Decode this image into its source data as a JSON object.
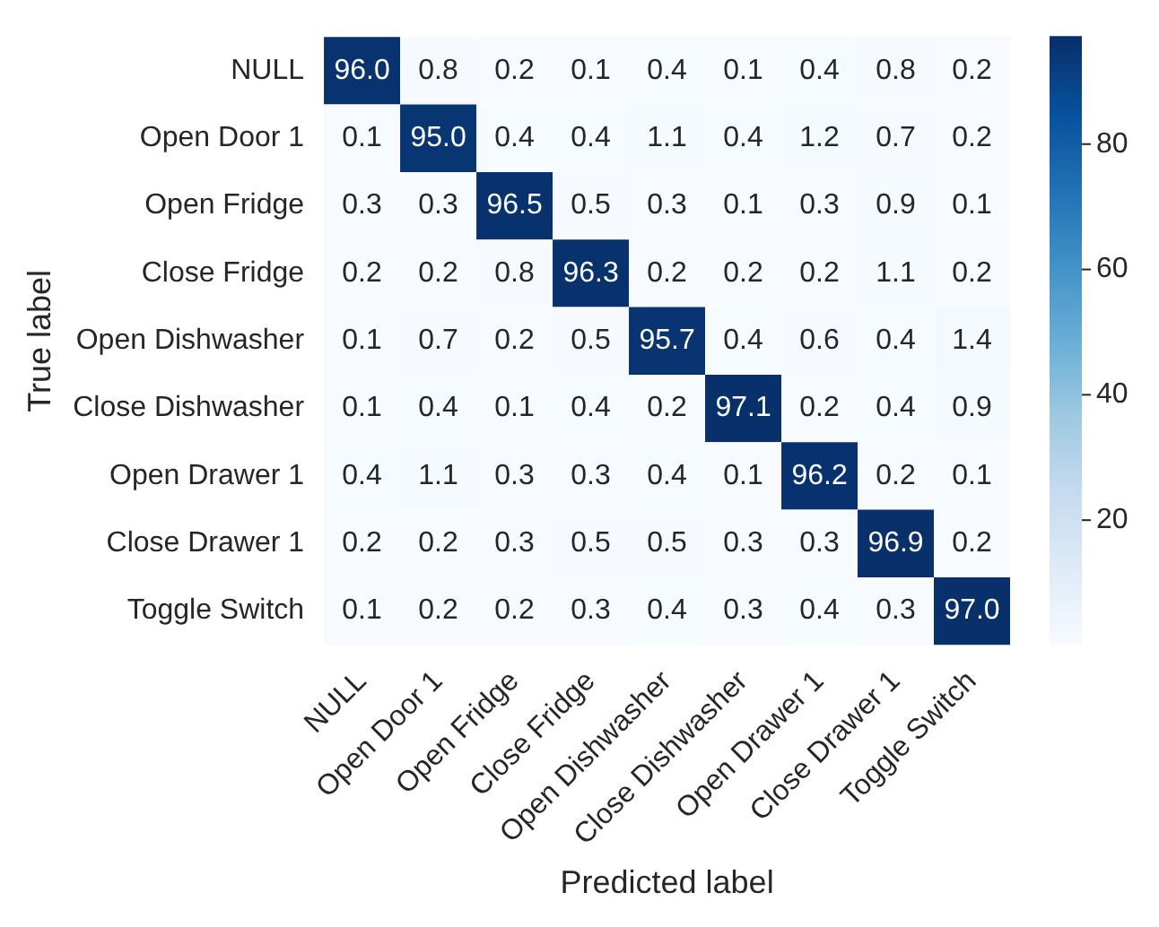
{
  "chart_data": {
    "type": "heatmap",
    "xlabel": "Predicted label",
    "ylabel": "True label",
    "categories": [
      "NULL",
      "Open Door 1",
      "Open Fridge",
      "Close Fridge",
      "Open Dishwasher",
      "Close Dishwasher",
      "Open Drawer 1",
      "Close Drawer 1",
      "Toggle Switch"
    ],
    "y_categories": [
      "NULL",
      "Open Door 1",
      "Open Fridge",
      "Close Fridge",
      "Open Dishwasher",
      "Close Dishwasher",
      "Open Drawer 1",
      "Close Drawer 1",
      "Toggle Switch"
    ],
    "cells": [
      [
        96.0,
        0.8,
        0.2,
        0.1,
        0.4,
        0.1,
        0.4,
        0.8,
        0.2
      ],
      [
        0.1,
        95.0,
        0.4,
        0.4,
        1.1,
        0.4,
        1.2,
        0.7,
        0.2
      ],
      [
        0.3,
        0.3,
        96.5,
        0.5,
        0.3,
        0.1,
        0.3,
        0.9,
        0.1
      ],
      [
        0.2,
        0.2,
        0.8,
        96.3,
        0.2,
        0.2,
        0.2,
        1.1,
        0.2
      ],
      [
        0.1,
        0.7,
        0.2,
        0.5,
        95.7,
        0.4,
        0.6,
        0.4,
        1.4
      ],
      [
        0.1,
        0.4,
        0.1,
        0.4,
        0.2,
        97.1,
        0.2,
        0.4,
        0.9
      ],
      [
        0.4,
        1.1,
        0.3,
        0.3,
        0.4,
        0.1,
        96.2,
        0.2,
        0.1
      ],
      [
        0.2,
        0.2,
        0.3,
        0.5,
        0.5,
        0.3,
        0.3,
        96.9,
        0.2
      ],
      [
        0.1,
        0.2,
        0.2,
        0.3,
        0.4,
        0.3,
        0.4,
        0.3,
        97.0
      ]
    ],
    "cell_labels": [
      [
        "96.0",
        "0.8",
        "0.2",
        "0.1",
        "0.4",
        "0.1",
        "0.4",
        "0.8",
        "0.2"
      ],
      [
        "0.1",
        "95.0",
        "0.4",
        "0.4",
        "1.1",
        "0.4",
        "1.2",
        "0.7",
        "0.2"
      ],
      [
        "0.3",
        "0.3",
        "96.5",
        "0.5",
        "0.3",
        "0.1",
        "0.3",
        "0.9",
        "0.1"
      ],
      [
        "0.2",
        "0.2",
        "0.8",
        "96.3",
        "0.2",
        "0.2",
        "0.2",
        "1.1",
        "0.2"
      ],
      [
        "0.1",
        "0.7",
        "0.2",
        "0.5",
        "95.7",
        "0.4",
        "0.6",
        "0.4",
        "1.4"
      ],
      [
        "0.1",
        "0.4",
        "0.1",
        "0.4",
        "0.2",
        "97.1",
        "0.2",
        "0.4",
        "0.9"
      ],
      [
        "0.4",
        "1.1",
        "0.3",
        "0.3",
        "0.4",
        "0.1",
        "96.2",
        "0.2",
        "0.1"
      ],
      [
        "0.2",
        "0.2",
        "0.3",
        "0.5",
        "0.5",
        "0.3",
        "0.3",
        "96.9",
        "0.2"
      ],
      [
        "0.1",
        "0.2",
        "0.2",
        "0.3",
        "0.4",
        "0.3",
        "0.4",
        "0.3",
        "97.0"
      ]
    ],
    "clim": [
      0.1,
      97.1
    ],
    "cticks": [
      20,
      40,
      60,
      80
    ]
  }
}
